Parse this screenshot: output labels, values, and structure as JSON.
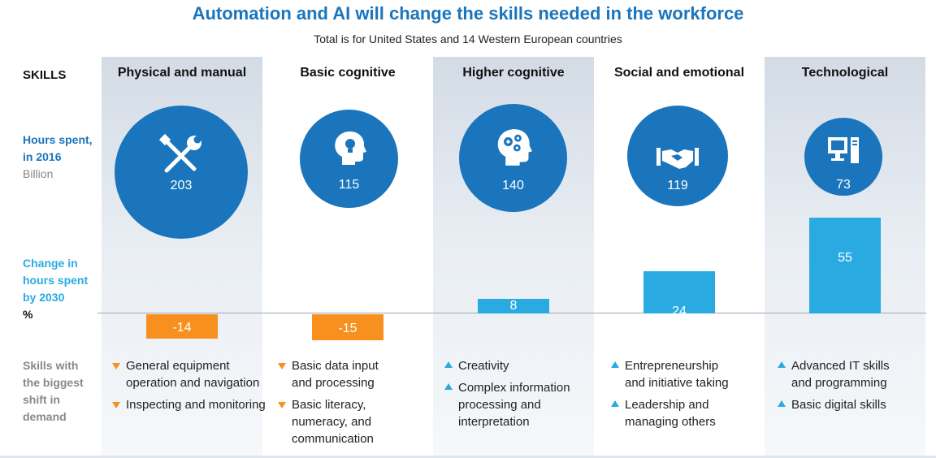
{
  "title": "Automation and AI will change the skills needed in the workforce",
  "subtitle": "Total is for United States and 14 Western European countries",
  "row_labels": {
    "skills": "SKILLS",
    "hours_line1": "Hours spent,",
    "hours_line2": "in 2016",
    "hours_unit": "Billion",
    "change_line1": "Change in",
    "change_line2": "hours spent",
    "change_line3": "by 2030",
    "change_unit": "%",
    "shift_line1": "Skills with",
    "shift_line2": "the biggest",
    "shift_line3": "shift in",
    "shift_line4": "demand"
  },
  "colors": {
    "circle": "#1a75bc",
    "positive": "#29abe2",
    "negative": "#f7901e"
  },
  "categories": [
    {
      "name": "Physical and manual",
      "icon": "wrench-screwdriver-icon",
      "hours_2016": "203",
      "change_2030": "-14",
      "shifts": [
        "General equipment operation and navigation",
        "Inspecting and monitoring"
      ]
    },
    {
      "name": "Basic cognitive",
      "icon": "head-lightbulb-icon",
      "hours_2016": "115",
      "change_2030": "-15",
      "shifts": [
        "Basic data input and processing",
        "Basic literacy, numeracy, and communication"
      ]
    },
    {
      "name": "Higher cognitive",
      "icon": "head-gears-icon",
      "hours_2016": "140",
      "change_2030": "8",
      "shifts": [
        "Creativity",
        "Complex information processing and interpretation"
      ]
    },
    {
      "name": "Social and emotional",
      "icon": "handshake-icon",
      "hours_2016": "119",
      "change_2030": "24",
      "shifts": [
        "Entrepreneurship and initiative taking",
        "Leadership and managing others"
      ]
    },
    {
      "name": "Technological",
      "icon": "computer-icon",
      "hours_2016": "73",
      "change_2030": "55",
      "shifts": [
        "Advanced IT skills and programming",
        "Basic digital skills"
      ]
    }
  ],
  "chart_data": {
    "type": "bar",
    "title": "Automation and AI will change the skills needed in the workforce",
    "subtitle": "Total is for United States and 14 Western European countries",
    "categories": [
      "Physical and manual",
      "Basic cognitive",
      "Higher cognitive",
      "Social and emotional",
      "Technological"
    ],
    "series": [
      {
        "name": "Hours spent, in 2016 Billion",
        "values": [
          203,
          115,
          140,
          119,
          73
        ]
      },
      {
        "name": "Change in hours spent by 2030 %",
        "values": [
          -14,
          -15,
          8,
          24,
          55
        ]
      }
    ]
  }
}
